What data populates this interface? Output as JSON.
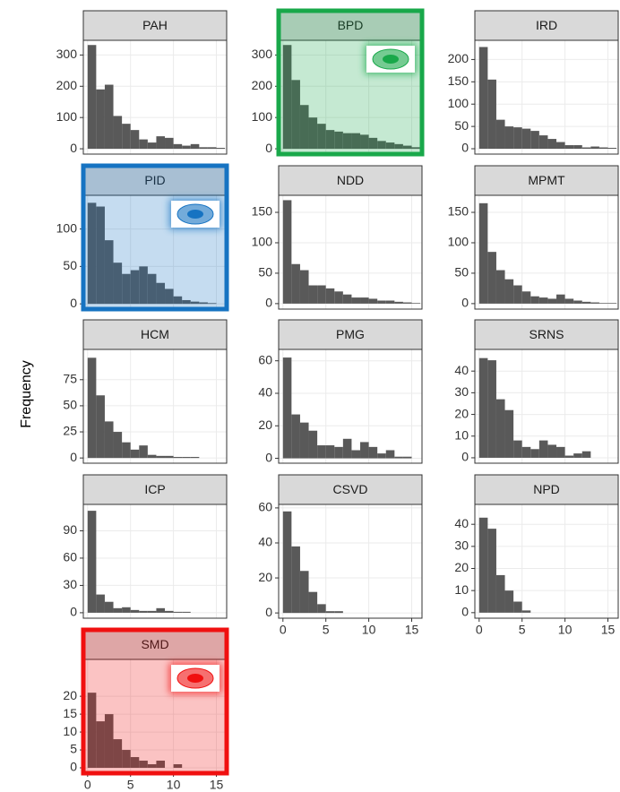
{
  "ylabel": "Frequency",
  "chart_data": [
    {
      "type": "histogram",
      "title": "PAH",
      "bins": [
        0,
        1,
        2,
        3,
        4,
        5,
        6,
        7,
        8,
        9,
        10,
        11,
        12,
        13,
        14,
        15,
        16
      ],
      "values": [
        332,
        190,
        205,
        105,
        80,
        60,
        30,
        20,
        40,
        35,
        15,
        10,
        15,
        5,
        5,
        3
      ],
      "color": "#595959",
      "xlim": [
        -0.5,
        16.2
      ],
      "xticks": [
        0,
        5,
        10,
        15
      ],
      "show_xtick_labels": false,
      "ylim": [
        -17,
        347
      ],
      "yticks": [
        0,
        100,
        200,
        300
      ],
      "grid": true
    },
    {
      "type": "histogram",
      "title": "BPD",
      "bins": [
        0,
        1,
        2,
        3,
        4,
        5,
        6,
        7,
        8,
        9,
        10,
        11,
        12,
        13,
        14,
        15,
        16
      ],
      "values": [
        332,
        220,
        140,
        100,
        80,
        60,
        55,
        50,
        50,
        45,
        35,
        25,
        20,
        15,
        10,
        5
      ],
      "color": "#595959",
      "xlim": [
        -0.5,
        16.2
      ],
      "xticks": [
        0,
        5,
        10,
        15
      ],
      "show_xtick_labels": false,
      "ylim": [
        -17,
        347
      ],
      "yticks": [
        0,
        100,
        200,
        300
      ],
      "grid": true,
      "highlight_color": "#19a84a"
    },
    {
      "type": "histogram",
      "title": "IRD",
      "bins": [
        0,
        1,
        2,
        3,
        4,
        5,
        6,
        7,
        8,
        9,
        10,
        11,
        12,
        13,
        14,
        15,
        16
      ],
      "values": [
        228,
        155,
        65,
        50,
        48,
        45,
        40,
        30,
        22,
        15,
        8,
        8,
        3,
        5,
        3,
        2
      ],
      "color": "#595959",
      "xlim": [
        -0.5,
        16.2
      ],
      "xticks": [
        0,
        5,
        10,
        15
      ],
      "show_xtick_labels": false,
      "ylim": [
        -12,
        243
      ],
      "yticks": [
        0,
        50,
        100,
        150,
        200
      ],
      "grid": true
    },
    {
      "type": "histogram",
      "title": "PID",
      "bins": [
        0,
        1,
        2,
        3,
        4,
        5,
        6,
        7,
        8,
        9,
        10,
        11,
        12,
        13,
        14,
        15,
        16
      ],
      "values": [
        135,
        130,
        85,
        55,
        40,
        45,
        50,
        40,
        28,
        20,
        10,
        5,
        3,
        2,
        1,
        0
      ],
      "color": "#595959",
      "xlim": [
        -0.5,
        16.2
      ],
      "xticks": [
        0,
        5,
        10,
        15
      ],
      "show_xtick_labels": false,
      "ylim": [
        -7,
        145
      ],
      "yticks": [
        0,
        50,
        100
      ],
      "grid": true,
      "highlight_color": "#1673c2"
    },
    {
      "type": "histogram",
      "title": "NDD",
      "bins": [
        0,
        1,
        2,
        3,
        4,
        5,
        6,
        7,
        8,
        9,
        10,
        11,
        12,
        13,
        14,
        15,
        16
      ],
      "values": [
        170,
        65,
        55,
        30,
        30,
        25,
        20,
        15,
        10,
        10,
        8,
        5,
        5,
        3,
        2,
        1
      ],
      "color": "#595959",
      "xlim": [
        -0.5,
        16.2
      ],
      "xticks": [
        0,
        5,
        10,
        15
      ],
      "show_xtick_labels": false,
      "ylim": [
        -9,
        178
      ],
      "yticks": [
        0,
        50,
        100,
        150
      ],
      "grid": true
    },
    {
      "type": "histogram",
      "title": "MPMT",
      "bins": [
        0,
        1,
        2,
        3,
        4,
        5,
        6,
        7,
        8,
        9,
        10,
        11,
        12,
        13,
        14,
        15,
        16
      ],
      "values": [
        165,
        85,
        55,
        40,
        30,
        20,
        12,
        10,
        8,
        15,
        8,
        5,
        3,
        2,
        1,
        1
      ],
      "color": "#595959",
      "xlim": [
        -0.5,
        16.2
      ],
      "xticks": [
        0,
        5,
        10,
        15
      ],
      "show_xtick_labels": false,
      "ylim": [
        -9,
        178
      ],
      "yticks": [
        0,
        50,
        100,
        150
      ],
      "grid": true
    },
    {
      "type": "histogram",
      "title": "HCM",
      "bins": [
        0,
        1,
        2,
        3,
        4,
        5,
        6,
        7,
        8,
        9,
        10,
        11,
        12,
        13,
        14,
        15,
        16
      ],
      "values": [
        96,
        60,
        35,
        25,
        15,
        8,
        12,
        3,
        2,
        2,
        1,
        1,
        1,
        0,
        0,
        0
      ],
      "color": "#595959",
      "xlim": [
        -0.5,
        16.2
      ],
      "xticks": [
        0,
        5,
        10,
        15
      ],
      "show_xtick_labels": false,
      "ylim": [
        -5,
        104
      ],
      "yticks": [
        0,
        25,
        50,
        75
      ],
      "grid": true
    },
    {
      "type": "histogram",
      "title": "PMG",
      "bins": [
        0,
        1,
        2,
        3,
        4,
        5,
        6,
        7,
        8,
        9,
        10,
        11,
        12,
        13,
        14,
        15,
        16
      ],
      "values": [
        62,
        27,
        22,
        17,
        8,
        8,
        7,
        12,
        5,
        10,
        7,
        3,
        5,
        1,
        1,
        0
      ],
      "color": "#595959",
      "xlim": [
        -0.5,
        16.2
      ],
      "xticks": [
        0,
        5,
        10,
        15
      ],
      "show_xtick_labels": false,
      "ylim": [
        -3,
        67
      ],
      "yticks": [
        0,
        20,
        40,
        60
      ],
      "grid": true
    },
    {
      "type": "histogram",
      "title": "SRNS",
      "bins": [
        0,
        1,
        2,
        3,
        4,
        5,
        6,
        7,
        8,
        9,
        10,
        11,
        12,
        13,
        14,
        15,
        16
      ],
      "values": [
        46,
        45,
        27,
        22,
        8,
        5,
        4,
        8,
        6,
        5,
        1,
        2,
        3,
        0,
        0,
        0
      ],
      "color": "#595959",
      "xlim": [
        -0.5,
        16.2
      ],
      "xticks": [
        0,
        5,
        10,
        15
      ],
      "show_xtick_labels": false,
      "ylim": [
        -2.5,
        50
      ],
      "yticks": [
        0,
        10,
        20,
        30,
        40
      ],
      "grid": true
    },
    {
      "type": "histogram",
      "title": "ICP",
      "bins": [
        0,
        1,
        2,
        3,
        4,
        5,
        6,
        7,
        8,
        9,
        10,
        11,
        12,
        13,
        14,
        15,
        16
      ],
      "values": [
        112,
        20,
        12,
        5,
        6,
        3,
        2,
        2,
        5,
        2,
        1,
        1,
        0,
        0,
        0,
        0
      ],
      "color": "#595959",
      "xlim": [
        -0.5,
        16.2
      ],
      "xticks": [
        0,
        5,
        10,
        15
      ],
      "show_xtick_labels": false,
      "ylim": [
        -6,
        119
      ],
      "yticks": [
        0,
        30,
        60,
        90
      ],
      "grid": true
    },
    {
      "type": "histogram",
      "title": "CSVD",
      "bins": [
        0,
        1,
        2,
        3,
        4,
        5,
        6,
        7,
        8,
        9,
        10,
        11,
        12,
        13,
        14,
        15,
        16
      ],
      "values": [
        58,
        38,
        24,
        12,
        5,
        1,
        1,
        0,
        0,
        0,
        0,
        0,
        0,
        0,
        0,
        0
      ],
      "color": "#595959",
      "xlim": [
        -0.5,
        16.2
      ],
      "xticks": [
        0,
        5,
        10,
        15
      ],
      "show_xtick_labels": true,
      "ylim": [
        -3,
        62
      ],
      "yticks": [
        0,
        20,
        40,
        60
      ],
      "grid": true
    },
    {
      "type": "histogram",
      "title": "NPD",
      "bins": [
        0,
        1,
        2,
        3,
        4,
        5,
        6,
        7,
        8,
        9,
        10,
        11,
        12,
        13,
        14,
        15,
        16
      ],
      "values": [
        43,
        38,
        17,
        10,
        5,
        1,
        0,
        0,
        0,
        0,
        0,
        0,
        0,
        0,
        0,
        0
      ],
      "color": "#595959",
      "xlim": [
        -0.5,
        16.2
      ],
      "xticks": [
        0,
        5,
        10,
        15
      ],
      "show_xtick_labels": true,
      "ylim": [
        -2.5,
        49
      ],
      "yticks": [
        0,
        10,
        20,
        30,
        40
      ],
      "grid": true
    },
    {
      "type": "histogram",
      "title": "SMD",
      "bins": [
        0,
        1,
        2,
        3,
        4,
        5,
        6,
        7,
        8,
        9,
        10,
        11,
        12,
        13,
        14,
        15,
        16
      ],
      "values": [
        21,
        13,
        15,
        8,
        5,
        3,
        2,
        1,
        2,
        0,
        1,
        0,
        0,
        0,
        0,
        0
      ],
      "color": "#595959",
      "xlim": [
        -0.5,
        16.2
      ],
      "xticks": [
        0,
        5,
        10,
        15
      ],
      "show_xtick_labels": true,
      "ylim": [
        -1.5,
        30.3
      ],
      "yticks": [
        0,
        5,
        10,
        15,
        20
      ],
      "grid": true,
      "highlight_color": "#f01010"
    }
  ]
}
